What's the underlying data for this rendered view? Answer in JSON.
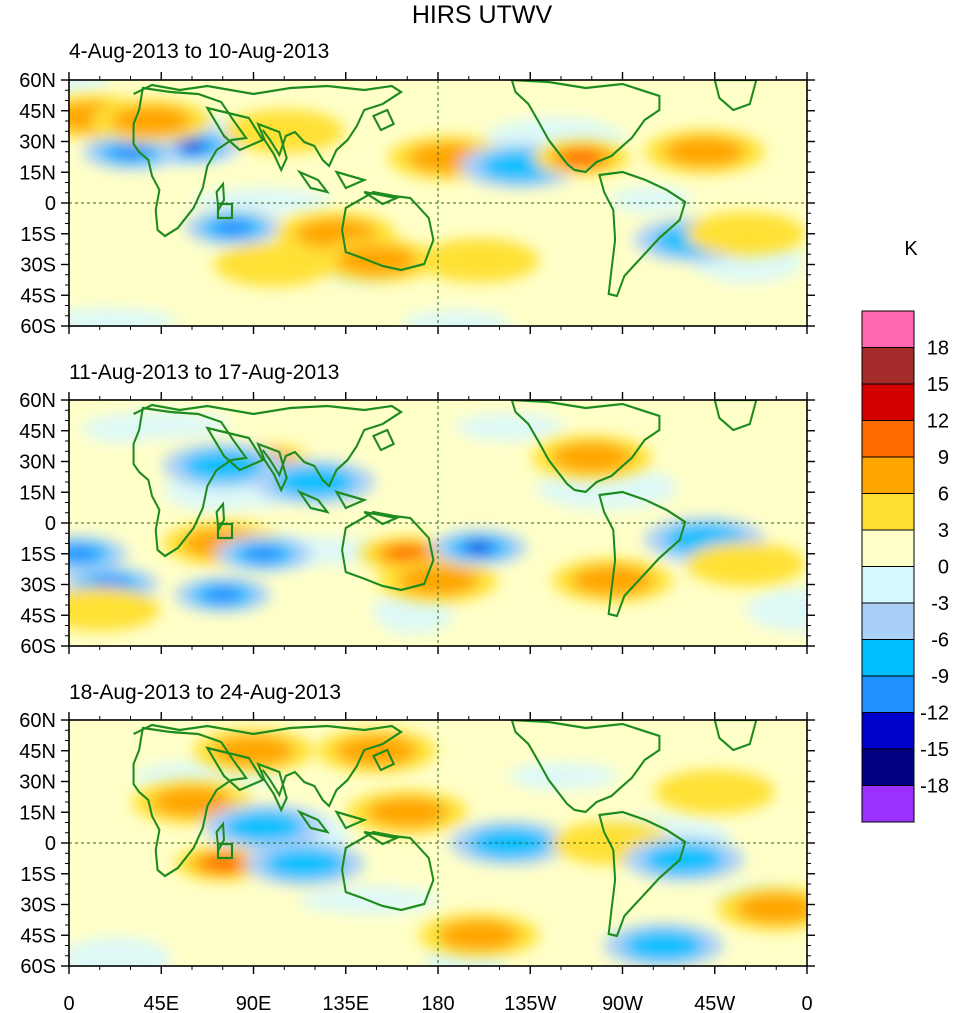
{
  "title": "HIRS UTWV",
  "colorbar": {
    "unit": "K",
    "levels": [
      "18",
      "15",
      "12",
      "9",
      "6",
      "3",
      "0",
      "-3",
      "-6",
      "-9",
      "-12",
      "-15",
      "-18"
    ],
    "colors_top_to_bottom": [
      "#ff69b4",
      "#a52a2a",
      "#d40000",
      "#ff6a00",
      "#ffa500",
      "#ffe135",
      "#ffffc8",
      "#d8f8ff",
      "#aad0f8",
      "#00bfff",
      "#1e90ff",
      "#0000cd",
      "#000080",
      "#9b30ff"
    ]
  },
  "chart_data": [
    {
      "type": "heatmap",
      "title": "4-Aug-2013 to 10-Aug-2013",
      "x_ticks": [
        "0",
        "45E",
        "90E",
        "135E",
        "180",
        "135W",
        "90W",
        "45W",
        "0"
      ],
      "y_ticks": [
        "60N",
        "45N",
        "30N",
        "15N",
        "0",
        "15S",
        "30S",
        "45S",
        "60S"
      ],
      "xlim": [
        0,
        360
      ],
      "ylim": [
        -60,
        60
      ],
      "features": [
        {
          "lon": 60,
          "lat": 28,
          "value": -15
        },
        {
          "lon": 30,
          "lat": 25,
          "value": -9
        },
        {
          "lon": 12,
          "lat": 42,
          "value": 6
        },
        {
          "lon": 40,
          "lat": 40,
          "value": 6
        },
        {
          "lon": 80,
          "lat": -12,
          "value": -9
        },
        {
          "lon": 105,
          "lat": 35,
          "value": 3
        },
        {
          "lon": 130,
          "lat": -15,
          "value": 6
        },
        {
          "lon": 150,
          "lat": -28,
          "value": 6
        },
        {
          "lon": 100,
          "lat": -30,
          "value": 3
        },
        {
          "lon": 185,
          "lat": 22,
          "value": 6
        },
        {
          "lon": 220,
          "lat": 18,
          "value": -6
        },
        {
          "lon": 250,
          "lat": 22,
          "value": 9
        },
        {
          "lon": 310,
          "lat": 25,
          "value": 6
        },
        {
          "lon": 305,
          "lat": -18,
          "value": -6
        },
        {
          "lon": 200,
          "lat": -28,
          "value": 3
        },
        {
          "lon": 330,
          "lat": -15,
          "value": 3
        }
      ]
    },
    {
      "type": "heatmap",
      "title": "11-Aug-2013 to 17-Aug-2013",
      "x_ticks": [
        "0",
        "45E",
        "90E",
        "135E",
        "180",
        "135W",
        "90W",
        "45W",
        "0"
      ],
      "y_ticks": [
        "60N",
        "45N",
        "30N",
        "15N",
        "0",
        "15S",
        "30S",
        "45S",
        "60S"
      ],
      "xlim": [
        0,
        360
      ],
      "ylim": [
        -60,
        60
      ],
      "features": [
        {
          "lon": 95,
          "lat": 30,
          "value": 9
        },
        {
          "lon": 75,
          "lat": 28,
          "value": -6
        },
        {
          "lon": 120,
          "lat": 20,
          "value": -6
        },
        {
          "lon": 5,
          "lat": -15,
          "value": -9
        },
        {
          "lon": 20,
          "lat": -30,
          "value": -9
        },
        {
          "lon": 75,
          "lat": -10,
          "value": 6
        },
        {
          "lon": 95,
          "lat": -15,
          "value": -9
        },
        {
          "lon": 75,
          "lat": -35,
          "value": -9
        },
        {
          "lon": 165,
          "lat": -15,
          "value": 9
        },
        {
          "lon": 180,
          "lat": -28,
          "value": 6
        },
        {
          "lon": 200,
          "lat": -12,
          "value": -12
        },
        {
          "lon": 265,
          "lat": -28,
          "value": 6
        },
        {
          "lon": 255,
          "lat": 32,
          "value": 6
        },
        {
          "lon": 310,
          "lat": -8,
          "value": -6
        },
        {
          "lon": 330,
          "lat": -20,
          "value": 3
        },
        {
          "lon": 15,
          "lat": -42,
          "value": 3
        }
      ]
    },
    {
      "type": "heatmap",
      "title": "18-Aug-2013 to 24-Aug-2013",
      "x_ticks": [
        "0",
        "45E",
        "90E",
        "135E",
        "180",
        "135W",
        "90W",
        "45W",
        "0"
      ],
      "y_ticks": [
        "60N",
        "45N",
        "30N",
        "15N",
        "0",
        "15S",
        "30S",
        "45S",
        "60S"
      ],
      "xlim": [
        0,
        360
      ],
      "ylim": [
        -60,
        60
      ],
      "features": [
        {
          "lon": 90,
          "lat": 45,
          "value": 6
        },
        {
          "lon": 150,
          "lat": 45,
          "value": 6
        },
        {
          "lon": 165,
          "lat": 15,
          "value": 6
        },
        {
          "lon": 75,
          "lat": -10,
          "value": 9
        },
        {
          "lon": 115,
          "lat": -10,
          "value": -6
        },
        {
          "lon": 60,
          "lat": 20,
          "value": 6
        },
        {
          "lon": 95,
          "lat": 8,
          "value": -6
        },
        {
          "lon": 200,
          "lat": -45,
          "value": 6
        },
        {
          "lon": 215,
          "lat": 0,
          "value": -6
        },
        {
          "lon": 265,
          "lat": 0,
          "value": 3
        },
        {
          "lon": 300,
          "lat": -8,
          "value": -6
        },
        {
          "lon": 345,
          "lat": -32,
          "value": 6
        },
        {
          "lon": 290,
          "lat": -50,
          "value": -6
        },
        {
          "lon": 315,
          "lat": 25,
          "value": 3
        }
      ]
    }
  ]
}
